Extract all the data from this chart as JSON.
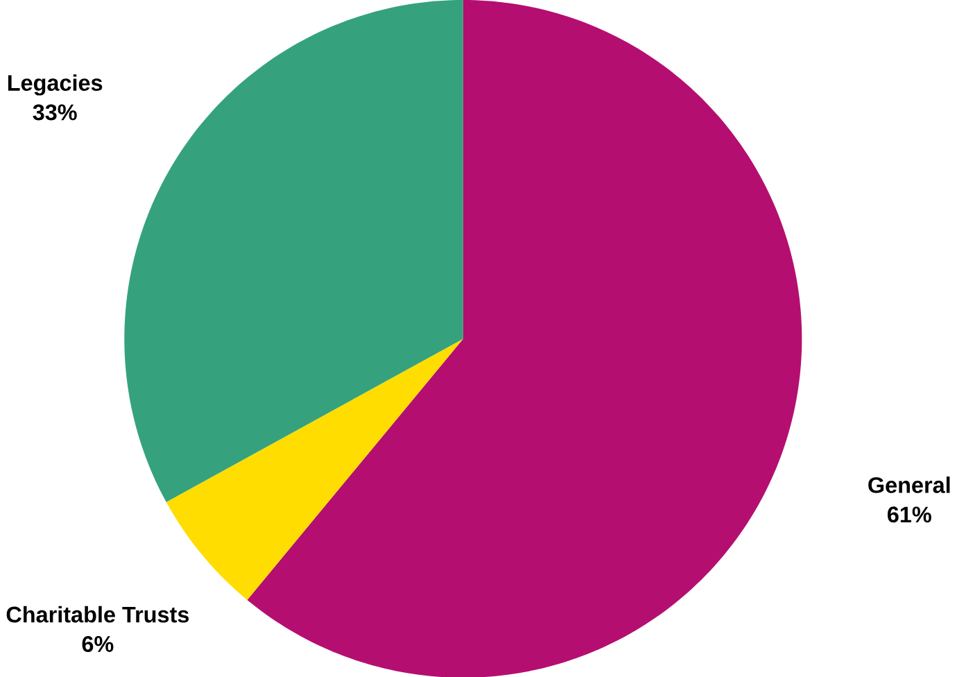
{
  "chart_data": {
    "type": "pie",
    "categories": [
      "General",
      "Charitable Trusts",
      "Legacies"
    ],
    "values": [
      61,
      6,
      33
    ],
    "colors": [
      "#b50e71",
      "#ffdd00",
      "#35a27d"
    ],
    "value_labels": [
      "61%",
      "6%",
      "33%"
    ]
  }
}
